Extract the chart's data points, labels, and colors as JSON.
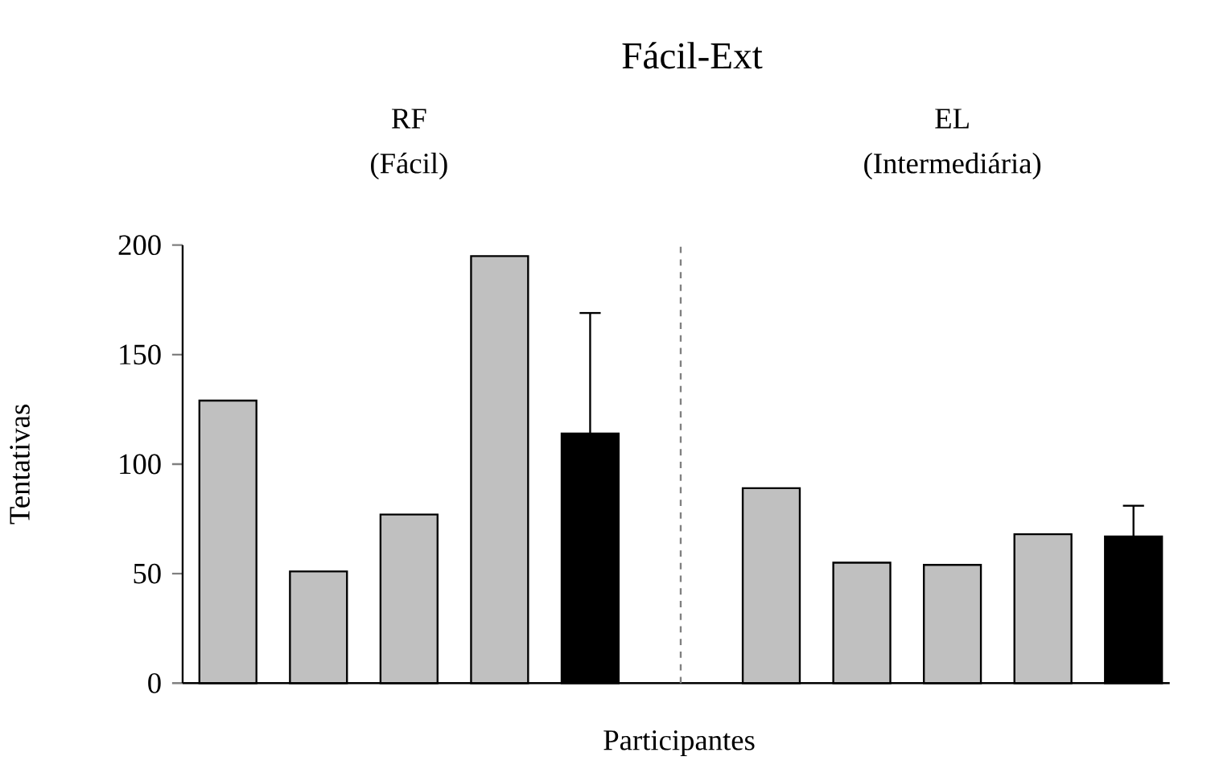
{
  "chart_data": {
    "type": "bar",
    "title": "Fácil-Ext",
    "xlabel": "Participantes",
    "ylabel": "Tentativas",
    "annotations": [
      "RF",
      "(Fácil)",
      "EL",
      "(Intermediária)"
    ],
    "categories": [
      null,
      null,
      null,
      null,
      null,
      null,
      null,
      null,
      null,
      null,
      null
    ],
    "values": [
      129,
      51,
      77,
      195,
      114,
      null,
      89,
      55,
      54,
      68,
      67
    ],
    "colors": [
      "#c0c0c0",
      "#c0c0c0",
      "#c0c0c0",
      "#c0c0c0",
      "#000000",
      null,
      "#c0c0c0",
      "#c0c0c0",
      "#c0c0c0",
      "#c0c0c0",
      "#000000"
    ],
    "errors": [
      null,
      null,
      null,
      null,
      [
        114,
        169
      ],
      null,
      null,
      null,
      null,
      null,
      [
        67,
        81
      ]
    ],
    "ylim": [
      0,
      200
    ],
    "yticks": [
      0,
      50,
      100,
      150,
      200
    ],
    "tick_labels": "y"
  }
}
